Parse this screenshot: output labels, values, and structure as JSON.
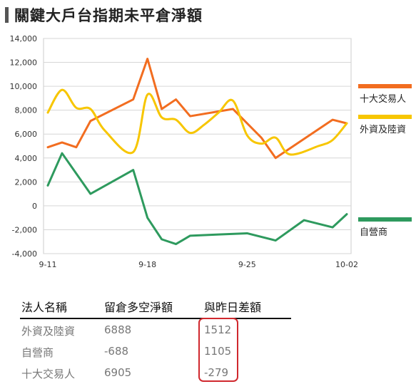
{
  "header": {
    "title": "關鍵大戶台指期未平倉淨額"
  },
  "chart_data": {
    "type": "line",
    "title": "關鍵大戶台指期未平倉淨額",
    "xlabel": "",
    "ylabel": "",
    "ylim": [
      -4000,
      14000
    ],
    "yticks": [
      14000,
      12000,
      10000,
      8000,
      6000,
      4000,
      2000,
      0,
      -2000,
      -4000
    ],
    "ytick_labels": [
      "14,000",
      "12,000",
      "10,000",
      "8,000",
      "6,000",
      "4,000",
      "2,000",
      "0",
      "-2,000",
      "-4,000"
    ],
    "xticks": [
      0,
      7,
      14,
      21
    ],
    "xtick_labels": [
      "9-11",
      "9-18",
      "9-25",
      "10-02"
    ],
    "grid": true,
    "legend_position": "right",
    "series": [
      {
        "name": "十大交易人",
        "color": "#f26d20",
        "smooth": false,
        "x": [
          0,
          1,
          2,
          3,
          6,
          7,
          8,
          9,
          10,
          13,
          15,
          16,
          20,
          21
        ],
        "values": [
          4900,
          5300,
          4900,
          7100,
          8900,
          12300,
          8100,
          8900,
          7500,
          8100,
          5700,
          4000,
          7200,
          6900
        ]
      },
      {
        "name": "外資及陸資",
        "color": "#f7c600",
        "smooth": true,
        "x": [
          0,
          1,
          2,
          3,
          4,
          6,
          7,
          8,
          9,
          10,
          11,
          12,
          13,
          14,
          15,
          16,
          17,
          19,
          20,
          21
        ],
        "values": [
          7800,
          9700,
          8200,
          8100,
          6300,
          4500,
          9300,
          7400,
          7200,
          6100,
          6800,
          7800,
          8800,
          5900,
          5200,
          5700,
          4300,
          5000,
          5500,
          6900
        ]
      },
      {
        "name": "自營商",
        "color": "#2e9a5e",
        "smooth": false,
        "x": [
          0,
          1,
          2,
          3,
          6,
          7,
          8,
          9,
          10,
          12,
          14,
          16,
          18,
          20,
          21
        ],
        "values": [
          1700,
          4400,
          2700,
          1000,
          3000,
          -1000,
          -2800,
          -3200,
          -2500,
          -2400,
          -2300,
          -2900,
          -1200,
          -1800,
          -700
        ]
      }
    ]
  },
  "table": {
    "headers": [
      "法人名稱",
      "留倉多空淨額",
      "與昨日差額"
    ],
    "rows": [
      [
        "外資及陸資",
        "6888",
        "1512"
      ],
      [
        "自營商",
        "-688",
        "1105"
      ],
      [
        "十大交易人",
        "6905",
        "-279"
      ]
    ]
  }
}
